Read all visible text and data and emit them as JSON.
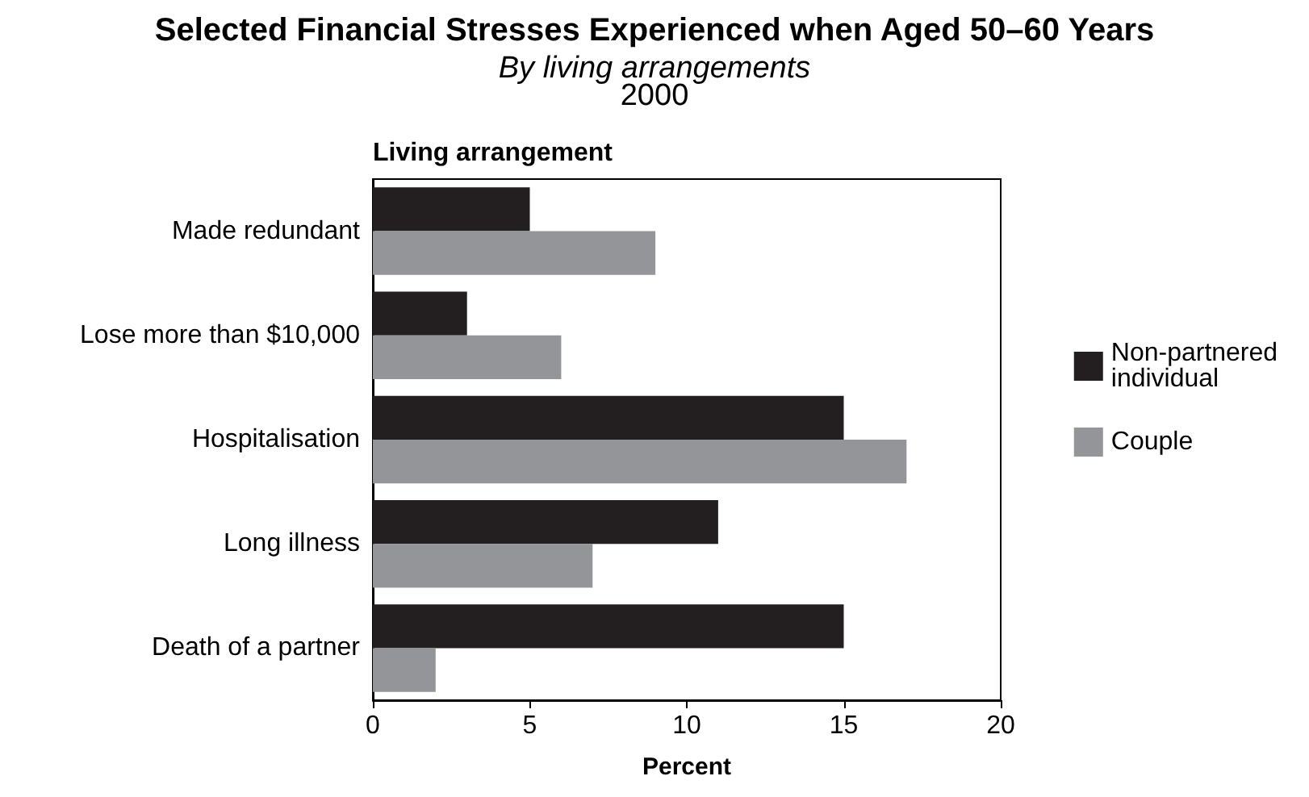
{
  "chart_data": {
    "type": "bar",
    "orientation": "horizontal",
    "title": "Selected Financial Stresses Experienced when Aged 50–60 Years",
    "subtitle": "By living arrangements",
    "annotations": [
      "2000"
    ],
    "ylabel": "Living arrangement",
    "xlabel": "Percent",
    "categories": [
      "Made redundant",
      "Lose more than $10,000",
      "Hospitalisation",
      "Long illness",
      "Death of a partner"
    ],
    "series": [
      {
        "name": "Non-partnered individual",
        "color": "#231f20",
        "values": [
          5,
          3,
          15,
          11,
          15
        ]
      },
      {
        "name": "Couple",
        "color": "#939598",
        "values": [
          9,
          6,
          17,
          7,
          2
        ]
      }
    ],
    "xlim": [
      0,
      20
    ],
    "xticks": [
      0,
      5,
      10,
      15,
      20
    ],
    "grid": false,
    "legend": "right"
  }
}
